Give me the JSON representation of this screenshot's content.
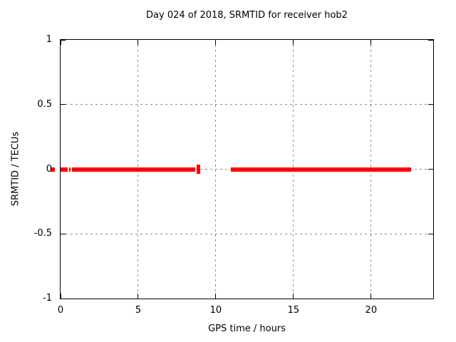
{
  "chart_data": {
    "type": "line",
    "title": "Day 024 of 2018, SRMTID for receiver hob2",
    "xlabel": "GPS time / hours",
    "ylabel": "SRMTID / TECUs",
    "xlim": [
      0,
      24
    ],
    "ylim": [
      -1,
      1
    ],
    "xticks": [
      0,
      5,
      10,
      15,
      20
    ],
    "xtick_labels": [
      "0",
      "5",
      "10",
      "15",
      "20"
    ],
    "yticks": [
      1,
      0.5,
      0,
      -0.5,
      -1
    ],
    "ytick_labels": [
      "1",
      "0.5",
      "0",
      "-0.5",
      "-1"
    ],
    "grid": true,
    "legend": false,
    "colors": {
      "series": "#ff0000",
      "grid": "#8c8c8c",
      "border": "#000000",
      "text": "#000000"
    },
    "series": [
      {
        "name": "SRMTID",
        "style": "thick horizontal band of points at constant value",
        "value": 0,
        "segments": [
          {
            "start_hour": 0.0,
            "end_hour": 0.47,
            "value": 0
          },
          {
            "start_hour": 0.55,
            "end_hour": 0.63,
            "value": 0
          },
          {
            "start_hour": 0.72,
            "end_hour": 8.67,
            "value": 0
          },
          {
            "start_hour": 8.78,
            "end_hour": 9.0,
            "value": 0,
            "spread": 0.07
          },
          {
            "start_hour": 10.97,
            "end_hour": 22.58,
            "value": 0
          }
        ],
        "stray_mark": {
          "start_hour": -0.64,
          "end_hour": -0.37,
          "value": 0
        }
      }
    ]
  }
}
